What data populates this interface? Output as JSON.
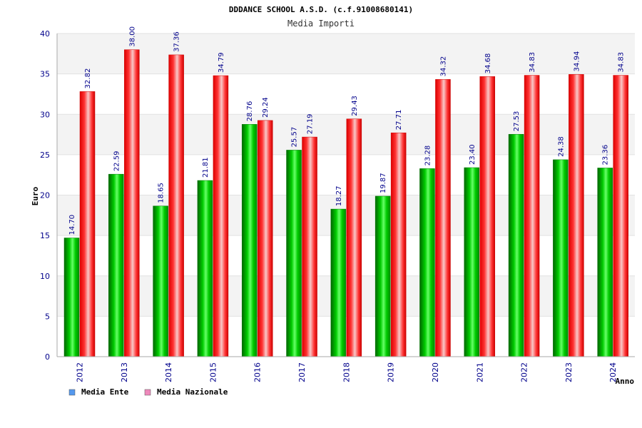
{
  "chart_data": {
    "type": "bar",
    "title": "DDDANCE SCHOOL A.S.D. (c.f.91008680141)",
    "subtitle": "Media Importi",
    "xlabel": "Anno",
    "ylabel": "Euro",
    "ylim": [
      0,
      40
    ],
    "yticks": [
      0,
      5,
      10,
      15,
      20,
      25,
      30,
      35,
      40
    ],
    "categories": [
      "2012",
      "2013",
      "2014",
      "2015",
      "2016",
      "2017",
      "2018",
      "2019",
      "2020",
      "2021",
      "2022",
      "2023",
      "2024"
    ],
    "series": [
      {
        "name": "Media Ente",
        "color": "#00aa00",
        "legend_color": "#5599ee",
        "values": [
          14.7,
          22.59,
          18.65,
          21.81,
          28.76,
          25.57,
          18.27,
          19.87,
          23.28,
          23.4,
          27.53,
          24.38,
          23.36
        ],
        "labels": [
          "14.70",
          "22.59",
          "18.65",
          "21.81",
          "28.76",
          "25.57",
          "18.27",
          "19.87",
          "23.28",
          "23.40",
          "27.53",
          "24.38",
          "23.36"
        ]
      },
      {
        "name": "Media Nazionale",
        "color": "#ee0000",
        "legend_color": "#ee88bb",
        "values": [
          32.82,
          38.0,
          37.36,
          34.79,
          29.24,
          27.19,
          29.43,
          27.71,
          34.32,
          34.68,
          34.83,
          34.94,
          34.83
        ],
        "labels": [
          "32.82",
          "38.00",
          "37.36",
          "34.79",
          "29.24",
          "27.19",
          "29.43",
          "27.71",
          "34.32",
          "34.68",
          "34.83",
          "34.94",
          "34.83"
        ]
      }
    ],
    "grid": true,
    "legend_position": "bottom-left"
  }
}
